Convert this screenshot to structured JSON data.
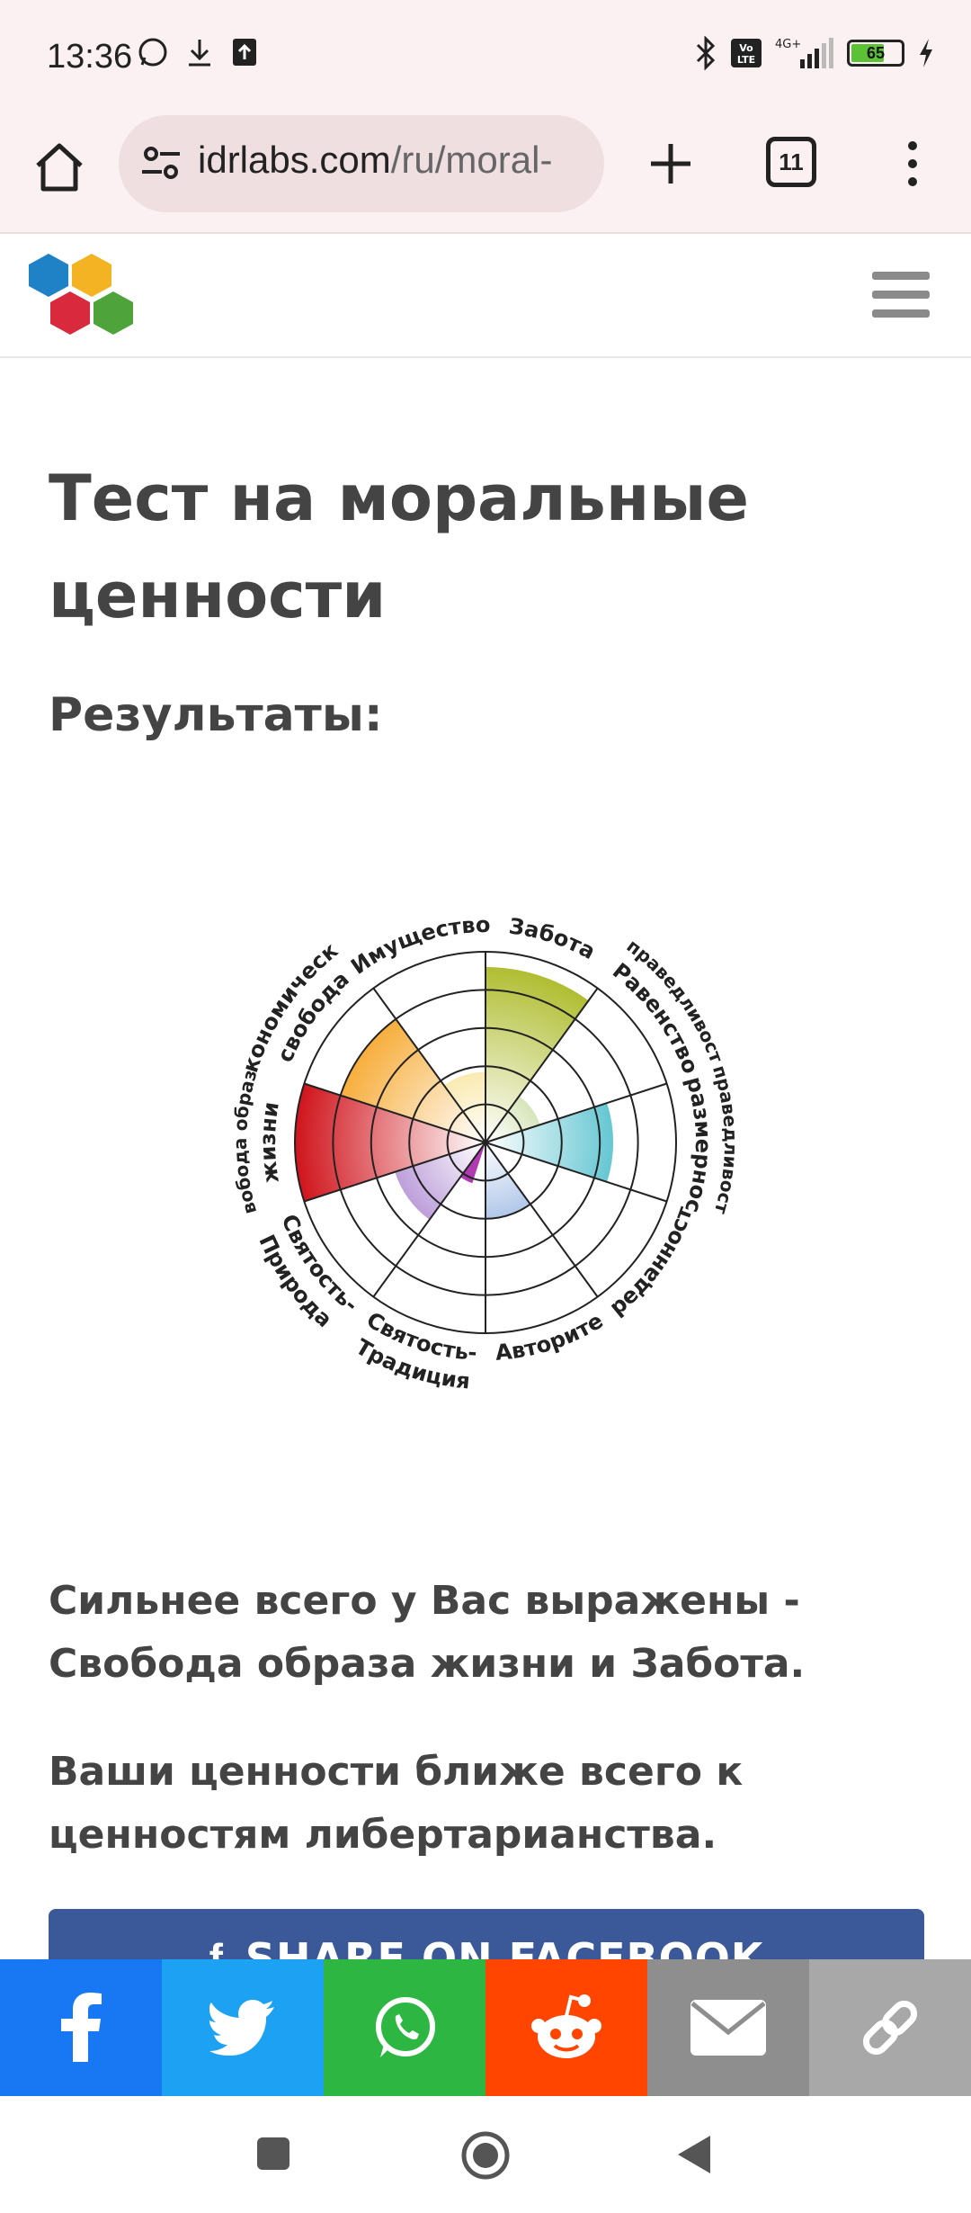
{
  "status_bar": {
    "time": "13:36",
    "battery": "65",
    "network": "4G+",
    "volte": "Vo LTE"
  },
  "browser": {
    "url_host": "idrlabs.com",
    "url_path": "/ru/moral-",
    "tab_count": "11"
  },
  "page": {
    "title": "Тест на моральные ценности",
    "results_label": "Результаты:",
    "strongest_text": "Сильнее всего у Вас выражены - Свобода образа жизни и Забота.",
    "closest_text": "Ваши ценности ближе всего к ценностям либертарианства.",
    "facebook_button": "SHARE ON FACEBOOK"
  },
  "chart_data": {
    "type": "polar-area",
    "rings": 5,
    "categories": [
      "Забота",
      "Справедливость-Равенство",
      "Справедливость-Соразмерность",
      "Преданность",
      "Авторитет",
      "Святость-Традиция",
      "Святость-Природа",
      "Свобода образа жизни",
      "Экономическая свобода",
      "Имущество"
    ],
    "label_lines": [
      [
        "Забота"
      ],
      [
        "Справедливость-",
        "Равенство"
      ],
      [
        "Справедливость-",
        "Соразмерность"
      ],
      [
        "Преданность"
      ],
      [
        "Авторите"
      ],
      [
        "Святость-",
        "Традиция"
      ],
      [
        "Святость-",
        "Природа"
      ],
      [
        "Свобода образа",
        "жизни"
      ],
      [
        "Экономическая",
        "свобода"
      ],
      [
        "Имущество"
      ]
    ],
    "values": [
      0.92,
      0.3,
      0.67,
      0,
      0.4,
      0,
      0.5,
      1.0,
      0.8,
      0.37
    ],
    "colors": [
      "#a9b820",
      "#7aab1e",
      "#1aabbd",
      "#cccccc",
      "#3b74c9",
      "#cccccc",
      "#7b3fb5",
      "#d0141c",
      "#f59a0c",
      "#f3c62b"
    ],
    "center_segment": {
      "after_category": "Святость-Традиция",
      "value": 0.07,
      "color": "#b03bb0"
    }
  },
  "share_bar": [
    {
      "name": "facebook",
      "color": "#1877f2"
    },
    {
      "name": "twitter",
      "color": "#1da1f2"
    },
    {
      "name": "whatsapp",
      "color": "#2db742"
    },
    {
      "name": "reddit",
      "color": "#ff4500"
    },
    {
      "name": "email",
      "color": "#8e8e8e"
    },
    {
      "name": "link",
      "color": "#a8a8a8"
    }
  ]
}
